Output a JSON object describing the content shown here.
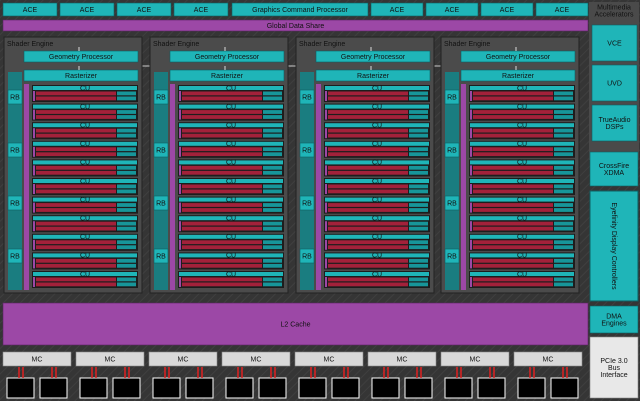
{
  "top_bar": {
    "left_aces": [
      "ACE",
      "ACE",
      "ACE",
      "ACE"
    ],
    "command_processor": "Graphics Command Processor",
    "right_aces": [
      "ACE",
      "ACE",
      "ACE",
      "ACE"
    ]
  },
  "global_data_share": "Global Data Share",
  "shader_engines": [
    {
      "label": "Shader Engine",
      "geometry": "Geometry Processor",
      "rasterizer": "Rasterizer",
      "rbs": [
        "RB",
        "RB",
        "RB",
        "RB"
      ],
      "cus": [
        "CU",
        "CU",
        "CU",
        "CU",
        "CU",
        "CU",
        "CU",
        "CU",
        "CU",
        "CU",
        "CU"
      ]
    },
    {
      "label": "Shader Engine",
      "geometry": "Geometry Processor",
      "rasterizer": "Rasterizer",
      "rbs": [
        "RB",
        "RB",
        "RB",
        "RB"
      ],
      "cus": [
        "CU",
        "CU",
        "CU",
        "CU",
        "CU",
        "CU",
        "CU",
        "CU",
        "CU",
        "CU",
        "CU"
      ]
    },
    {
      "label": "Shader Engine",
      "geometry": "Geometry Processor",
      "rasterizer": "Rasterizer",
      "rbs": [
        "RB",
        "RB",
        "RB",
        "RB"
      ],
      "cus": [
        "CU",
        "CU",
        "CU",
        "CU",
        "CU",
        "CU",
        "CU",
        "CU",
        "CU",
        "CU",
        "CU"
      ]
    },
    {
      "label": "Shader Engine",
      "geometry": "Geometry Processor",
      "rasterizer": "Rasterizer",
      "rbs": [
        "RB",
        "RB",
        "RB",
        "RB"
      ],
      "cus": [
        "CU",
        "CU",
        "CU",
        "CU",
        "CU",
        "CU",
        "CU",
        "CU",
        "CU",
        "CU",
        "CU"
      ]
    }
  ],
  "l2_cache": "L2 Cache",
  "memory_controllers": [
    "MC",
    "MC",
    "MC",
    "MC",
    "MC",
    "MC",
    "MC",
    "MC"
  ],
  "side_panel": {
    "title": "Multimedia Accelerators",
    "vce": "VCE",
    "uvd": "UVD",
    "trueaudio": "TrueAudio DSPs",
    "crossfire": "CrossFire XDMA",
    "eyefinity": "Eyefinity Display Controllers",
    "dma": "DMA Engines",
    "pcie": "PCIe 3.0 Bus Interface"
  }
}
